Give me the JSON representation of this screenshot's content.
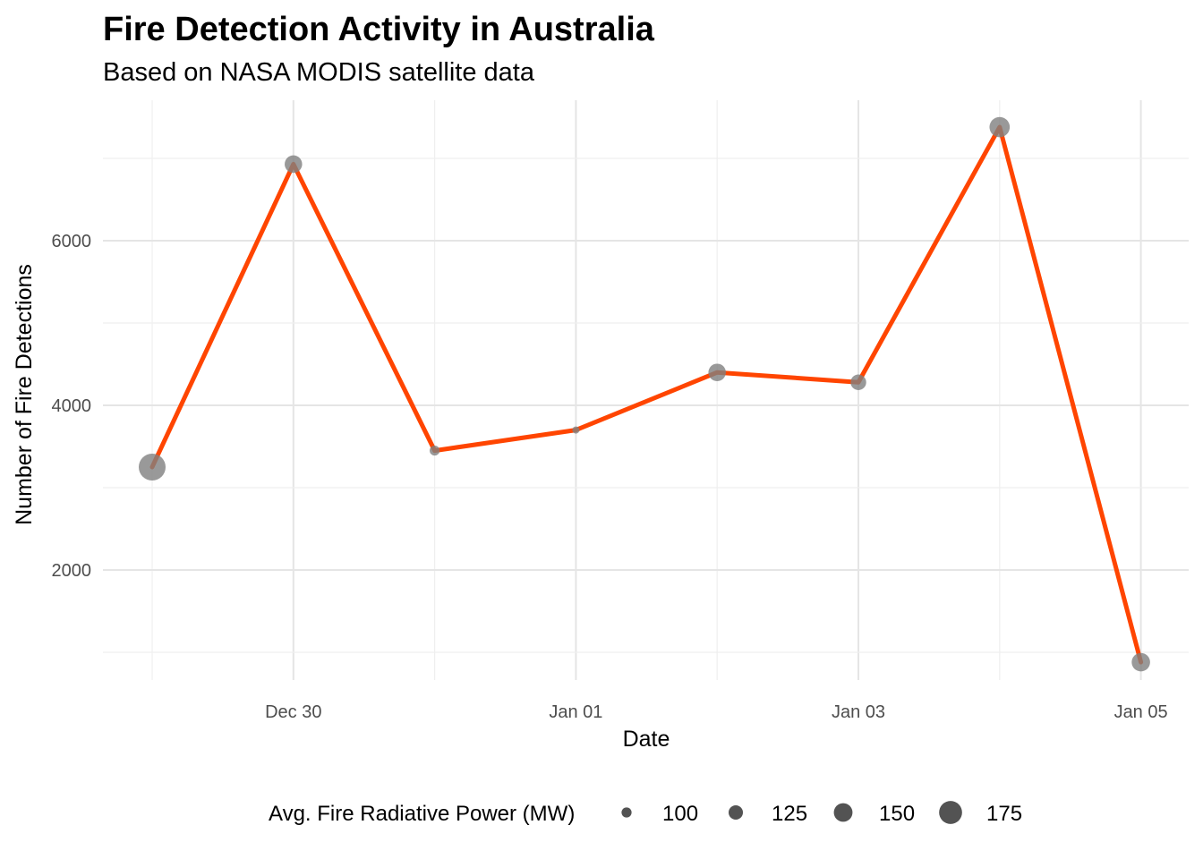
{
  "chart_data": {
    "type": "line",
    "title": "Fire Detection Activity in Australia",
    "subtitle": "Based on NASA MODIS satellite data",
    "xlabel": "Date",
    "ylabel": "Number of Fire Detections",
    "x": [
      "2019-12-29",
      "2019-12-30",
      "2019-12-31",
      "2020-01-01",
      "2020-01-02",
      "2020-01-03",
      "2020-01-04",
      "2020-01-05"
    ],
    "x_tick_values": [
      "2019-12-30",
      "2020-01-01",
      "2020-01-03",
      "2020-01-05"
    ],
    "x_tick_labels": [
      "Dec 30",
      "Jan 01",
      "Jan 03",
      "Jan 05"
    ],
    "y_ticks": [
      2000,
      4000,
      6000
    ],
    "y_tick_labels": [
      "2000",
      "4000",
      "6000"
    ],
    "ylim": [
      650,
      7700
    ],
    "grid": true,
    "series": [
      {
        "values": [
          3250,
          6930,
          3450,
          3700,
          4400,
          4280,
          7380,
          880
        ],
        "point_size_values": [
          185,
          135,
          95,
          80,
          135,
          125,
          150,
          140
        ]
      }
    ],
    "legend": {
      "title": "Avg. Fire Radiative Power (MW)",
      "placement": "bottom",
      "entries": [
        {
          "label": "100",
          "value": 100
        },
        {
          "label": "125",
          "value": 125
        },
        {
          "label": "150",
          "value": 150
        },
        {
          "label": "175",
          "value": 175
        }
      ]
    },
    "colors": {
      "line": "#FF4500",
      "point_fill": "#7f7f7f",
      "legend_point": "#4a4a4a",
      "grid": "#e5e5e5"
    }
  }
}
